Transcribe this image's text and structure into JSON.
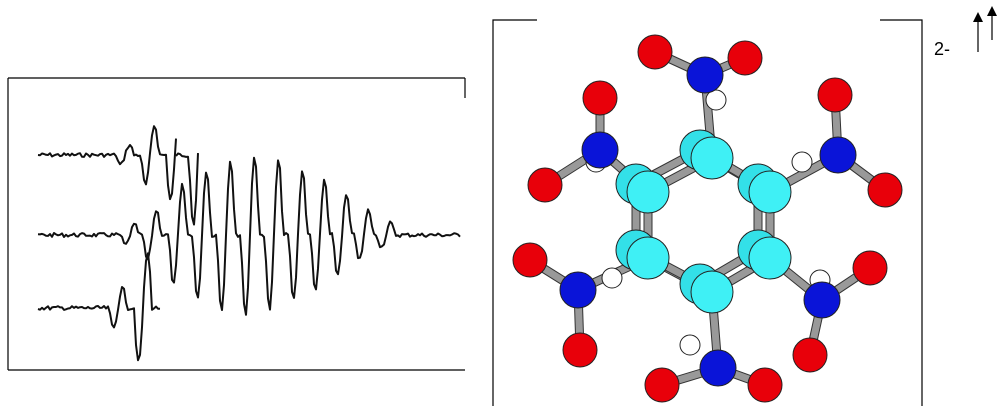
{
  "charge_label": "2-"
}
